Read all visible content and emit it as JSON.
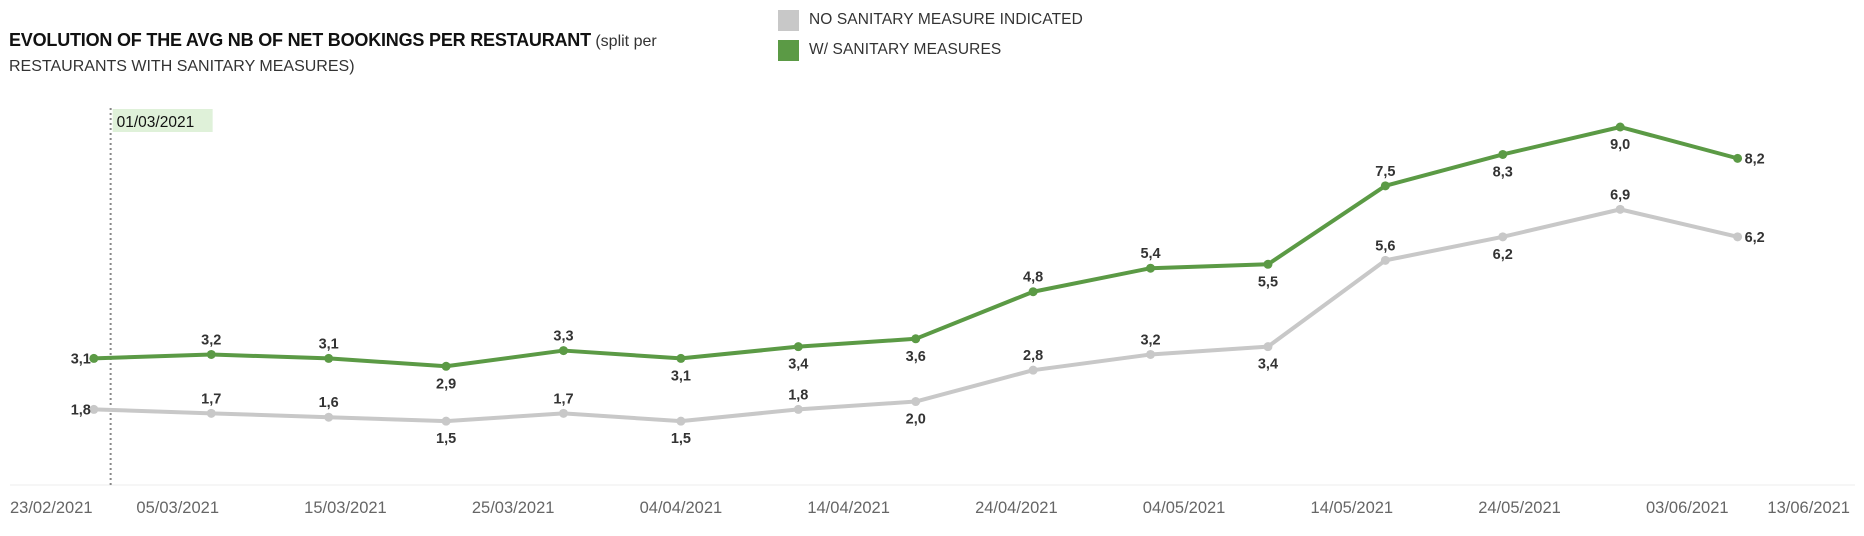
{
  "title": {
    "main": "EVOLUTION OF THE AVG NB OF NET BOOKINGS PER RESTAURANT",
    "sub": "(split per RESTAURANTS WITH SANITARY MEASURES)"
  },
  "legend": [
    {
      "label": "NO SANITARY MEASURE INDICATED",
      "color": "#c8c8c8"
    },
    {
      "label": "W/ SANITARY MEASURES",
      "color": "#5b9a45"
    }
  ],
  "colors": {
    "accent": "#5b9a45",
    "secondary": "#c8c8c8",
    "annotation_bg": "#dff1d9"
  },
  "chart_data": {
    "type": "line",
    "title": "EVOLUTION OF THE AVG NB OF NET BOOKINGS PER RESTAURANT",
    "subtitle": "(split per RESTAURANTS WITH SANITARY MEASURES)",
    "xlabel": "",
    "ylabel": "",
    "x_type": "date",
    "x": [
      "2021-02-28",
      "2021-03-07",
      "2021-03-14",
      "2021-03-21",
      "2021-03-28",
      "2021-04-04",
      "2021-04-11",
      "2021-04-18",
      "2021-04-25",
      "2021-05-02",
      "2021-05-09",
      "2021-05-16",
      "2021-05-23",
      "2021-05-30",
      "2021-06-06"
    ],
    "xlim": [
      "2021-02-23",
      "2021-06-13"
    ],
    "x_ticks": [
      "23/02/2021",
      "05/03/2021",
      "15/03/2021",
      "25/03/2021",
      "04/04/2021",
      "14/04/2021",
      "24/04/2021",
      "04/05/2021",
      "14/05/2021",
      "24/05/2021",
      "03/06/2021",
      "13/06/2021"
    ],
    "ylim": [
      0,
      10
    ],
    "grid": false,
    "legend_position": "top",
    "series": [
      {
        "name": "NO SANITARY MEASURE INDICATED",
        "color": "#c8c8c8",
        "values": [
          1.8,
          1.7,
          1.6,
          1.5,
          1.7,
          1.5,
          1.8,
          2.0,
          2.8,
          3.2,
          3.4,
          5.6,
          6.2,
          6.9,
          6.2
        ],
        "labels": [
          "1,8",
          "1,7",
          "1,6",
          "1,5",
          "1,7",
          "1,5",
          "1,8",
          "2,0",
          "2,8",
          "3,2",
          "3,4",
          "5,6",
          "6,2",
          "6,9",
          "6,2"
        ],
        "label_pos": [
          "left",
          "above",
          "above",
          "below",
          "above",
          "below",
          "above",
          "below",
          "above",
          "above",
          "below",
          "above",
          "below",
          "above",
          "right"
        ]
      },
      {
        "name": "W/ SANITARY MEASURES",
        "color": "#5b9a45",
        "values": [
          3.1,
          3.2,
          3.1,
          2.9,
          3.3,
          3.1,
          3.4,
          3.6,
          4.8,
          5.4,
          5.5,
          7.5,
          8.3,
          9.0,
          8.2
        ],
        "labels": [
          "3,1",
          "3,2",
          "3,1",
          "2,9",
          "3,3",
          "3,1",
          "3,4",
          "3,6",
          "4,8",
          "5,4",
          "5,5",
          "7,5",
          "8,3",
          "9,0",
          "8,2"
        ],
        "label_pos": [
          "left",
          "above",
          "above",
          "below",
          "above",
          "below",
          "below",
          "below",
          "above",
          "above",
          "below",
          "above",
          "below",
          "below",
          "right"
        ]
      }
    ],
    "annotations": [
      {
        "type": "reference-line",
        "x": "2021-03-01",
        "label": "01/03/2021"
      }
    ]
  }
}
